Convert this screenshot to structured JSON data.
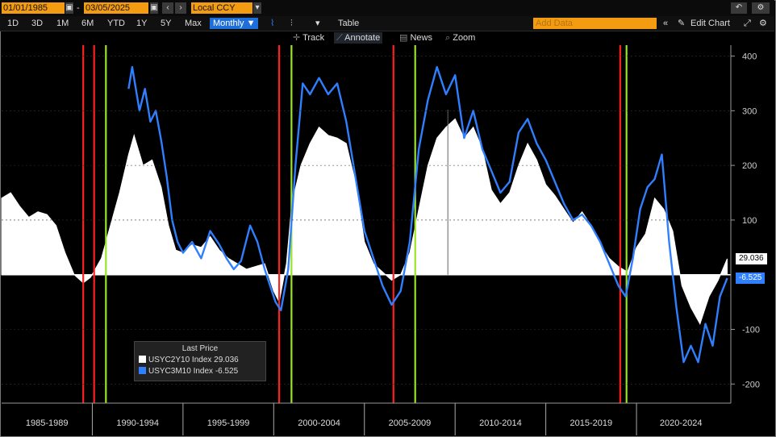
{
  "toolbar": {
    "start_date": "01/01/1985",
    "end_date": "03/05/2025",
    "currency": "Local CCY",
    "timeframes": [
      "1D",
      "3D",
      "1M",
      "6M",
      "YTD",
      "1Y",
      "5Y",
      "Max"
    ],
    "frequency": "Monthly ▼",
    "table_label": "Table",
    "add_data_placeholder": "Add Data",
    "edit_chart_label": "Edit Chart",
    "annotation_tools": [
      "Track",
      "Annotate",
      "News",
      "Zoom"
    ],
    "separator": "-"
  },
  "legend": {
    "header": "Last Price",
    "items": [
      {
        "label": "USYC2Y10 Index  29.036",
        "color": "#ffffff"
      },
      {
        "label": "USYC3M10 Index  -6.525",
        "color": "#2f7fff"
      }
    ]
  },
  "price_tags": [
    {
      "text": "29.036",
      "value": 29.036,
      "bg": "#ffffff",
      "fg": "#000000"
    },
    {
      "text": "-6.525",
      "value": -6.525,
      "bg": "#2f7fff",
      "fg": "#ffffff"
    }
  ],
  "chart_data": {
    "type": "area",
    "title": "",
    "xlabel": "",
    "ylabel": "",
    "xlim": [
      1985.0,
      2025.2
    ],
    "ylim": [
      -235,
      420
    ],
    "y_ticks": [
      400,
      300,
      200,
      100,
      -100,
      -200
    ],
    "period_labels": [
      "1985-1989",
      "1990-1994",
      "1995-1999",
      "2000-2004",
      "2005-2009",
      "2010-2014",
      "2015-2019",
      "2020-2024"
    ],
    "period_bounds": [
      1990,
      1995,
      2000,
      2005,
      2010,
      2015,
      2020
    ],
    "red_lines": [
      1989.5,
      1990.1,
      2000.3,
      2006.6,
      2019.1
    ],
    "green_lines": [
      1990.75,
      2000.98,
      2007.8,
      2019.45
    ],
    "current_marker": 2009.6,
    "series": [
      {
        "name": "USYC2Y10 Index",
        "color": "#ffffff",
        "style": "area",
        "points": [
          [
            1985.0,
            140
          ],
          [
            1985.5,
            150
          ],
          [
            1986.0,
            125
          ],
          [
            1986.5,
            105
          ],
          [
            1987.0,
            115
          ],
          [
            1987.5,
            110
          ],
          [
            1988.0,
            90
          ],
          [
            1988.5,
            40
          ],
          [
            1989.0,
            0
          ],
          [
            1989.5,
            -15
          ],
          [
            1989.9,
            -5
          ],
          [
            1990.5,
            30
          ],
          [
            1991.0,
            90
          ],
          [
            1991.5,
            150
          ],
          [
            1992.0,
            220
          ],
          [
            1992.3,
            255
          ],
          [
            1992.8,
            200
          ],
          [
            1993.3,
            210
          ],
          [
            1993.8,
            160
          ],
          [
            1994.2,
            90
          ],
          [
            1994.6,
            45
          ],
          [
            1995.0,
            40
          ],
          [
            1995.5,
            55
          ],
          [
            1996.0,
            50
          ],
          [
            1996.5,
            70
          ],
          [
            1997.0,
            45
          ],
          [
            1997.5,
            30
          ],
          [
            1998.0,
            20
          ],
          [
            1998.5,
            10
          ],
          [
            1999.0,
            15
          ],
          [
            1999.5,
            20
          ],
          [
            2000.0,
            -30
          ],
          [
            2000.3,
            -50
          ],
          [
            2000.7,
            20
          ],
          [
            2001.0,
            130
          ],
          [
            2001.5,
            200
          ],
          [
            2002.0,
            240
          ],
          [
            2002.5,
            270
          ],
          [
            2003.0,
            255
          ],
          [
            2003.5,
            250
          ],
          [
            2004.0,
            240
          ],
          [
            2004.5,
            170
          ],
          [
            2005.0,
            60
          ],
          [
            2005.5,
            20
          ],
          [
            2006.0,
            5
          ],
          [
            2006.5,
            -10
          ],
          [
            2007.0,
            0
          ],
          [
            2007.5,
            40
          ],
          [
            2008.0,
            120
          ],
          [
            2008.5,
            200
          ],
          [
            2009.0,
            250
          ],
          [
            2009.5,
            270
          ],
          [
            2010.0,
            285
          ],
          [
            2010.5,
            250
          ],
          [
            2011.0,
            270
          ],
          [
            2011.5,
            230
          ],
          [
            2012.0,
            155
          ],
          [
            2012.5,
            130
          ],
          [
            2013.0,
            150
          ],
          [
            2013.5,
            200
          ],
          [
            2014.0,
            240
          ],
          [
            2014.5,
            210
          ],
          [
            2015.0,
            165
          ],
          [
            2015.5,
            145
          ],
          [
            2016.0,
            120
          ],
          [
            2016.5,
            95
          ],
          [
            2017.0,
            115
          ],
          [
            2017.5,
            90
          ],
          [
            2018.0,
            55
          ],
          [
            2018.5,
            30
          ],
          [
            2019.0,
            15
          ],
          [
            2019.5,
            5
          ],
          [
            2020.0,
            50
          ],
          [
            2020.5,
            75
          ],
          [
            2021.0,
            140
          ],
          [
            2021.5,
            120
          ],
          [
            2022.0,
            80
          ],
          [
            2022.5,
            -20
          ],
          [
            2023.0,
            -60
          ],
          [
            2023.5,
            -90
          ],
          [
            2024.0,
            -40
          ],
          [
            2024.5,
            -10
          ],
          [
            2025.0,
            29.036
          ]
        ]
      },
      {
        "name": "USYC3M10 Index",
        "color": "#2f7fff",
        "style": "line",
        "points": [
          [
            1992.0,
            340
          ],
          [
            1992.2,
            380
          ],
          [
            1992.6,
            300
          ],
          [
            1992.9,
            340
          ],
          [
            1993.2,
            280
          ],
          [
            1993.5,
            300
          ],
          [
            1993.8,
            245
          ],
          [
            1994.1,
            180
          ],
          [
            1994.4,
            100
          ],
          [
            1994.7,
            60
          ],
          [
            1995.0,
            40
          ],
          [
            1995.5,
            60
          ],
          [
            1996.0,
            30
          ],
          [
            1996.5,
            80
          ],
          [
            1997.0,
            55
          ],
          [
            1997.4,
            30
          ],
          [
            1997.8,
            10
          ],
          [
            1998.2,
            25
          ],
          [
            1998.7,
            90
          ],
          [
            1999.1,
            60
          ],
          [
            1999.5,
            10
          ],
          [
            1999.8,
            -20
          ],
          [
            2000.1,
            -50
          ],
          [
            2000.4,
            -65
          ],
          [
            2000.8,
            10
          ],
          [
            2001.2,
            200
          ],
          [
            2001.6,
            350
          ],
          [
            2002.0,
            330
          ],
          [
            2002.5,
            360
          ],
          [
            2003.0,
            330
          ],
          [
            2003.5,
            350
          ],
          [
            2004.0,
            280
          ],
          [
            2004.5,
            180
          ],
          [
            2005.0,
            80
          ],
          [
            2005.5,
            30
          ],
          [
            2006.0,
            -20
          ],
          [
            2006.5,
            -55
          ],
          [
            2007.0,
            -30
          ],
          [
            2007.5,
            60
          ],
          [
            2008.0,
            230
          ],
          [
            2008.5,
            320
          ],
          [
            2009.0,
            380
          ],
          [
            2009.5,
            330
          ],
          [
            2010.0,
            365
          ],
          [
            2010.5,
            250
          ],
          [
            2011.0,
            300
          ],
          [
            2011.5,
            230
          ],
          [
            2012.0,
            190
          ],
          [
            2012.5,
            150
          ],
          [
            2013.0,
            170
          ],
          [
            2013.5,
            260
          ],
          [
            2014.0,
            285
          ],
          [
            2014.5,
            240
          ],
          [
            2015.0,
            210
          ],
          [
            2015.5,
            170
          ],
          [
            2016.0,
            130
          ],
          [
            2016.5,
            100
          ],
          [
            2017.0,
            110
          ],
          [
            2017.5,
            90
          ],
          [
            2018.0,
            60
          ],
          [
            2018.5,
            20
          ],
          [
            2019.0,
            -20
          ],
          [
            2019.4,
            -40
          ],
          [
            2019.8,
            30
          ],
          [
            2020.2,
            120
          ],
          [
            2020.6,
            160
          ],
          [
            2021.0,
            175
          ],
          [
            2021.4,
            220
          ],
          [
            2021.8,
            60
          ],
          [
            2022.2,
            -60
          ],
          [
            2022.6,
            -160
          ],
          [
            2023.0,
            -130
          ],
          [
            2023.4,
            -160
          ],
          [
            2023.8,
            -90
          ],
          [
            2024.2,
            -130
          ],
          [
            2024.6,
            -40
          ],
          [
            2025.0,
            -6.525
          ]
        ]
      }
    ]
  }
}
